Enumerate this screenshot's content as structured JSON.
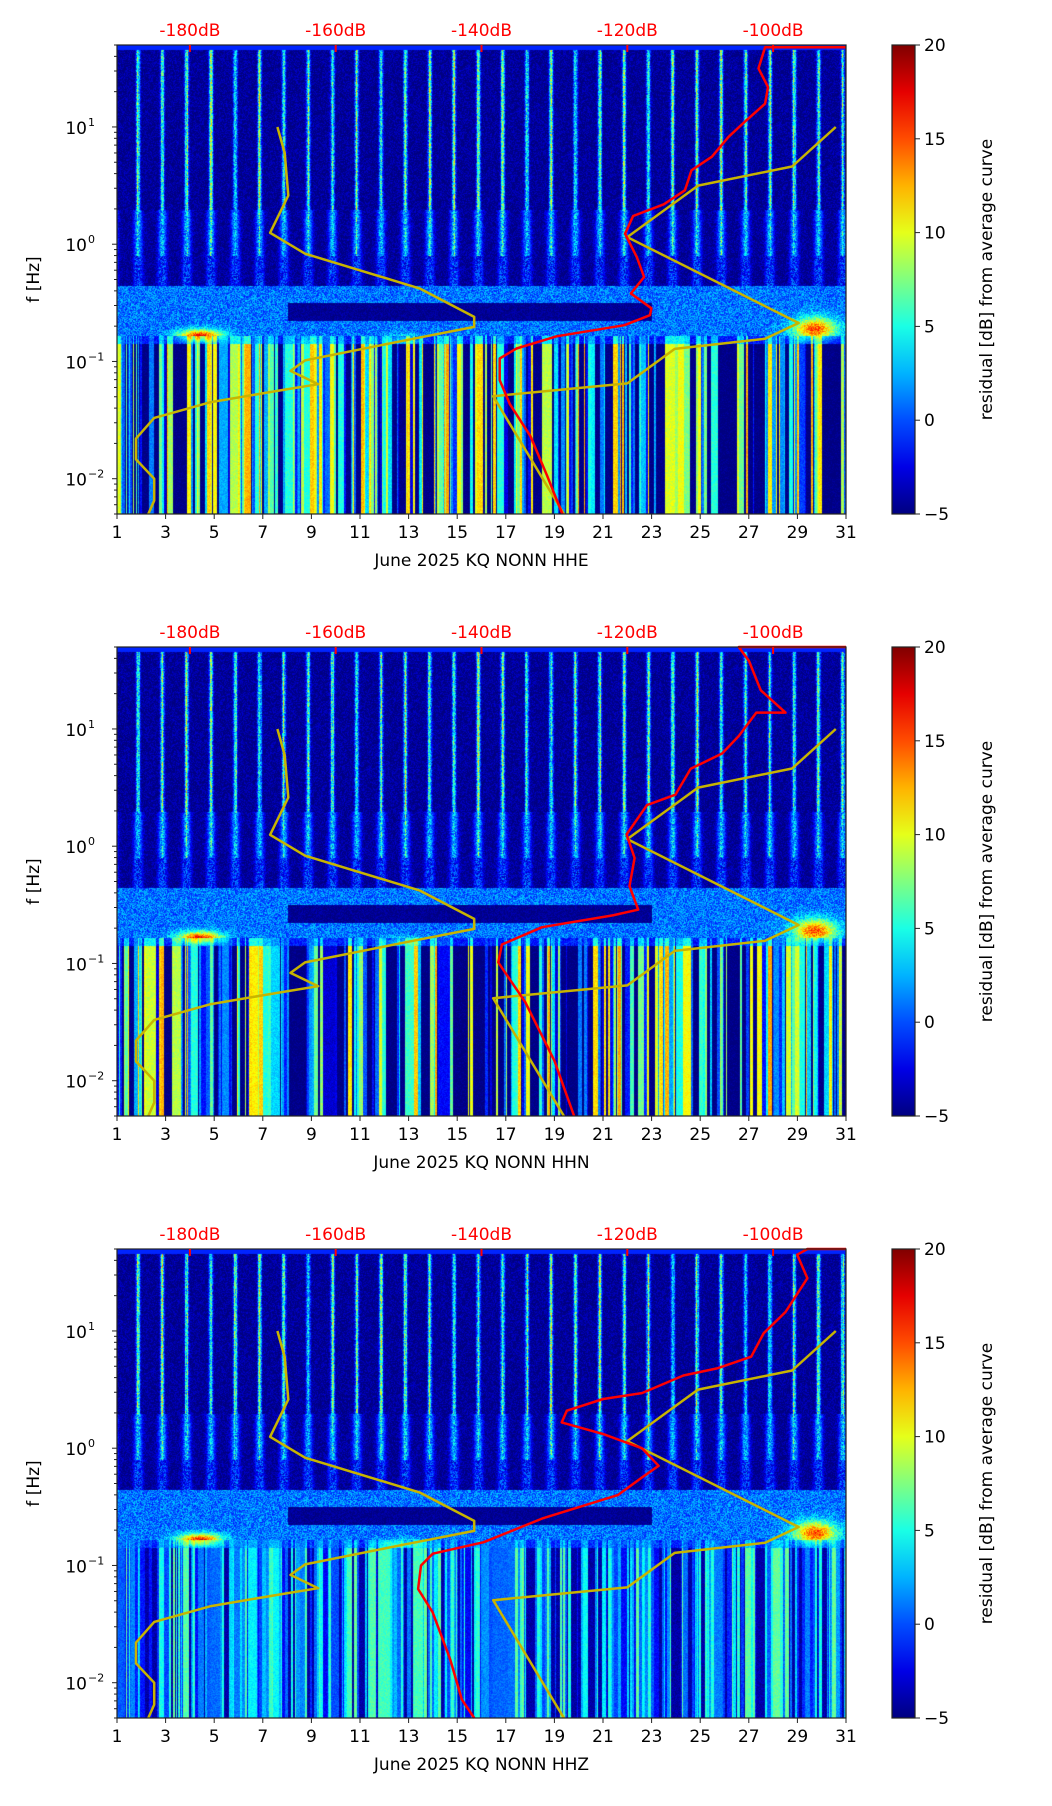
{
  "chart_data": [
    {
      "type": "heatmap",
      "xlabel": "June 2025 KQ NONN  HHE",
      "ylabel": "f [Hz]",
      "xticks": [
        "1",
        "3",
        "5",
        "7",
        "9",
        "11",
        "13",
        "15",
        "17",
        "19",
        "21",
        "23",
        "25",
        "27",
        "29",
        "31"
      ],
      "xlim": [
        1,
        31
      ],
      "ylim": [
        0.005,
        50
      ],
      "yscale": "log",
      "ytick_base": "10",
      "ytick_exponents": [
        "−2",
        "−1",
        "0",
        "1"
      ],
      "top_axis": {
        "range_db": [
          -190,
          -90
        ],
        "ticks": [
          -180,
          -160,
          -140,
          -120,
          -100
        ],
        "labels": [
          "-180dB",
          "-160dB",
          "-140dB",
          "-120dB",
          "-100dB"
        ],
        "color": "#ff0000"
      },
      "colorbar": {
        "label": "residual [dB] from average curve",
        "range": [
          -5,
          20
        ],
        "ticks": [
          "−5",
          "0",
          "5",
          "10",
          "15",
          "20"
        ],
        "colormap": "jet"
      },
      "series": [
        {
          "name": "noise-model",
          "color": "#c8b400",
          "x_unit": "dB",
          "points": [
            [
              -168,
              10
            ],
            [
              -167,
              6
            ],
            [
              -166.5,
              2.6
            ],
            [
              -169,
              1.25
            ],
            [
              -164.2,
              0.83
            ],
            [
              -148.5,
              0.42
            ],
            [
              -141,
              0.24
            ],
            [
              -141,
              0.197
            ],
            [
              -150.8,
              0.15
            ],
            [
              -164.2,
              0.102
            ],
            [
              -166.2,
              0.083
            ],
            [
              -162.4,
              0.064
            ],
            [
              -167.4,
              0.057
            ],
            [
              -177.1,
              0.045
            ],
            [
              -184.9,
              0.033
            ],
            [
              -187.4,
              0.022
            ],
            [
              -187.4,
              0.0146
            ],
            [
              -184.9,
              0.01
            ],
            [
              -184.9,
              0.0065
            ],
            [
              -185.7,
              0.005
            ]
          ]
        },
        {
          "name": "high-noise-model",
          "color": "#c8b400",
          "x_unit": "dB",
          "points": [
            [
              -128.7,
              0.005
            ],
            [
              -138.4,
              0.0505
            ],
            [
              -120,
              0.065
            ],
            [
              -113.5,
              0.128
            ],
            [
              -101.1,
              0.156
            ],
            [
              -96.5,
              0.213
            ],
            [
              -120,
              1.15
            ],
            [
              -110.3,
              3.16
            ],
            [
              -97.4,
              4.6
            ],
            [
              -91.4,
              10
            ]
          ]
        },
        {
          "name": "station-psd",
          "color": "#ff0000",
          "x_unit": "dB",
          "points": [
            [
              -128.9,
              0.005
            ],
            [
              -131,
              0.0106
            ],
            [
              -133.3,
              0.0232
            ],
            [
              -136.1,
              0.0432
            ],
            [
              -137.5,
              0.0692
            ],
            [
              -137.5,
              0.106
            ],
            [
              -135.2,
              0.129
            ],
            [
              -129.7,
              0.164
            ],
            [
              -120.4,
              0.204
            ],
            [
              -116.9,
              0.248
            ],
            [
              -116.7,
              0.284
            ],
            [
              -119.5,
              0.38
            ],
            [
              -117.7,
              0.525
            ],
            [
              -118.7,
              0.776
            ],
            [
              -120.3,
              1.23
            ],
            [
              -119.2,
              1.74
            ],
            [
              -115,
              2.19
            ],
            [
              -112.1,
              2.88
            ],
            [
              -111.2,
              4.27
            ],
            [
              -108.4,
              5.58
            ],
            [
              -106.1,
              8.24
            ],
            [
              -103.8,
              11.2
            ],
            [
              -101.1,
              15.8
            ],
            [
              -100.7,
              21.9
            ],
            [
              -102,
              31.6
            ],
            [
              -101.1,
              47.9
            ],
            [
              -90,
              47.9
            ]
          ]
        }
      ]
    },
    {
      "type": "heatmap",
      "xlabel": "June 2025 KQ NONN  HHN",
      "ylabel": "f [Hz]",
      "xticks": [
        "1",
        "3",
        "5",
        "7",
        "9",
        "11",
        "13",
        "15",
        "17",
        "19",
        "21",
        "23",
        "25",
        "27",
        "29",
        "31"
      ],
      "xlim": [
        1,
        31
      ],
      "ylim": [
        0.005,
        50
      ],
      "yscale": "log",
      "ytick_base": "10",
      "ytick_exponents": [
        "−2",
        "−1",
        "0",
        "1"
      ],
      "top_axis": {
        "range_db": [
          -190,
          -90
        ],
        "ticks": [
          -180,
          -160,
          -140,
          -120,
          -100
        ],
        "labels": [
          "-180dB",
          "-160dB",
          "-140dB",
          "-120dB",
          "-100dB"
        ],
        "color": "#ff0000"
      },
      "colorbar": {
        "label": "residual [dB] from average curve",
        "range": [
          -5,
          20
        ],
        "ticks": [
          "−5",
          "0",
          "5",
          "10",
          "15",
          "20"
        ],
        "colormap": "jet"
      },
      "series": [
        {
          "name": "noise-model",
          "color": "#c8b400",
          "x_unit": "dB",
          "points": [
            [
              -168,
              10
            ],
            [
              -167,
              6
            ],
            [
              -166.5,
              2.6
            ],
            [
              -169,
              1.25
            ],
            [
              -164.2,
              0.83
            ],
            [
              -148.5,
              0.42
            ],
            [
              -141,
              0.24
            ],
            [
              -141,
              0.197
            ],
            [
              -150.8,
              0.15
            ],
            [
              -164.2,
              0.102
            ],
            [
              -166.2,
              0.083
            ],
            [
              -162.4,
              0.064
            ],
            [
              -167.4,
              0.057
            ],
            [
              -177.1,
              0.045
            ],
            [
              -184.9,
              0.033
            ],
            [
              -187.4,
              0.022
            ],
            [
              -187.4,
              0.0146
            ],
            [
              -184.9,
              0.01
            ],
            [
              -184.9,
              0.0065
            ],
            [
              -185.7,
              0.005
            ]
          ]
        },
        {
          "name": "high-noise-model",
          "color": "#c8b400",
          "x_unit": "dB",
          "points": [
            [
              -128.7,
              0.005
            ],
            [
              -138.4,
              0.0505
            ],
            [
              -120,
              0.065
            ],
            [
              -113.5,
              0.128
            ],
            [
              -101.1,
              0.156
            ],
            [
              -96.5,
              0.213
            ],
            [
              -120,
              1.15
            ],
            [
              -110.3,
              3.16
            ],
            [
              -97.4,
              4.6
            ],
            [
              -91.4,
              10
            ]
          ]
        },
        {
          "name": "station-psd",
          "color": "#ff0000",
          "x_unit": "dB",
          "points": [
            [
              -127.3,
              0.005
            ],
            [
              -130,
              0.0148
            ],
            [
              -134,
              0.0468
            ],
            [
              -137.7,
              0.102
            ],
            [
              -137.2,
              0.145
            ],
            [
              -131.7,
              0.204
            ],
            [
              -122,
              0.257
            ],
            [
              -118.5,
              0.288
            ],
            [
              -119.7,
              0.457
            ],
            [
              -119,
              0.794
            ],
            [
              -120.1,
              1.26
            ],
            [
              -117.3,
              2.24
            ],
            [
              -113.4,
              2.75
            ],
            [
              -111.3,
              4.57
            ],
            [
              -107,
              6.17
            ],
            [
              -104.7,
              8.71
            ],
            [
              -102.3,
              13.8
            ],
            [
              -98.3,
              13.8
            ],
            [
              -101.7,
              21.4
            ],
            [
              -103.3,
              38
            ],
            [
              -104.7,
              50
            ],
            [
              -90,
              50
            ]
          ]
        }
      ]
    },
    {
      "type": "heatmap",
      "xlabel": "June 2025 KQ NONN  HHZ",
      "ylabel": "f [Hz]",
      "xticks": [
        "1",
        "3",
        "5",
        "7",
        "9",
        "11",
        "13",
        "15",
        "17",
        "19",
        "21",
        "23",
        "25",
        "27",
        "29",
        "31"
      ],
      "xlim": [
        1,
        31
      ],
      "ylim": [
        0.005,
        50
      ],
      "yscale": "log",
      "ytick_base": "10",
      "ytick_exponents": [
        "−2",
        "−1",
        "0",
        "1"
      ],
      "top_axis": {
        "range_db": [
          -190,
          -90
        ],
        "ticks": [
          -180,
          -160,
          -140,
          -120,
          -100
        ],
        "labels": [
          "-180dB",
          "-160dB",
          "-140dB",
          "-120dB",
          "-100dB"
        ],
        "color": "#ff0000"
      },
      "colorbar": {
        "label": "residual [dB] from average curve",
        "range": [
          -5,
          20
        ],
        "ticks": [
          "−5",
          "0",
          "5",
          "10",
          "15",
          "20"
        ],
        "colormap": "jet"
      },
      "series": [
        {
          "name": "noise-model",
          "color": "#c8b400",
          "x_unit": "dB",
          "points": [
            [
              -168,
              10
            ],
            [
              -167,
              6
            ],
            [
              -166.5,
              2.6
            ],
            [
              -169,
              1.25
            ],
            [
              -164.2,
              0.83
            ],
            [
              -148.5,
              0.42
            ],
            [
              -141,
              0.24
            ],
            [
              -141,
              0.197
            ],
            [
              -150.8,
              0.15
            ],
            [
              -164.2,
              0.102
            ],
            [
              -166.2,
              0.083
            ],
            [
              -162.4,
              0.064
            ],
            [
              -167.4,
              0.057
            ],
            [
              -177.1,
              0.045
            ],
            [
              -184.9,
              0.033
            ],
            [
              -187.4,
              0.022
            ],
            [
              -187.4,
              0.0146
            ],
            [
              -184.9,
              0.01
            ],
            [
              -184.9,
              0.0065
            ],
            [
              -185.7,
              0.005
            ]
          ]
        },
        {
          "name": "high-noise-model",
          "color": "#c8b400",
          "x_unit": "dB",
          "points": [
            [
              -128.7,
              0.005
            ],
            [
              -138.4,
              0.0505
            ],
            [
              -120,
              0.065
            ],
            [
              -113.5,
              0.128
            ],
            [
              -101.1,
              0.156
            ],
            [
              -96.5,
              0.213
            ],
            [
              -120,
              1.15
            ],
            [
              -110.3,
              3.16
            ],
            [
              -97.4,
              4.6
            ],
            [
              -91.4,
              10
            ]
          ]
        },
        {
          "name": "station-psd",
          "color": "#ff0000",
          "x_unit": "dB",
          "points": [
            [
              -141,
              0.005
            ],
            [
              -142.7,
              0.0072
            ],
            [
              -144.3,
              0.0158
            ],
            [
              -146.7,
              0.0398
            ],
            [
              -148.7,
              0.063
            ],
            [
              -148.3,
              0.1
            ],
            [
              -146.7,
              0.126
            ],
            [
              -139.7,
              0.158
            ],
            [
              -131.7,
              0.251
            ],
            [
              -121.3,
              0.398
            ],
            [
              -118,
              0.562
            ],
            [
              -115.7,
              0.708
            ],
            [
              -118,
              1.0
            ],
            [
              -123.3,
              1.32
            ],
            [
              -129,
              1.66
            ],
            [
              -128.3,
              2.09
            ],
            [
              -123.3,
              2.63
            ],
            [
              -118,
              2.95
            ],
            [
              -112.3,
              4.17
            ],
            [
              -107.7,
              4.79
            ],
            [
              -103,
              6.03
            ],
            [
              -101.3,
              9.55
            ],
            [
              -98.3,
              14.5
            ],
            [
              -95.3,
              28.2
            ],
            [
              -96.7,
              44.7
            ],
            [
              -95.3,
              50
            ],
            [
              -90,
              50
            ]
          ]
        }
      ]
    }
  ]
}
